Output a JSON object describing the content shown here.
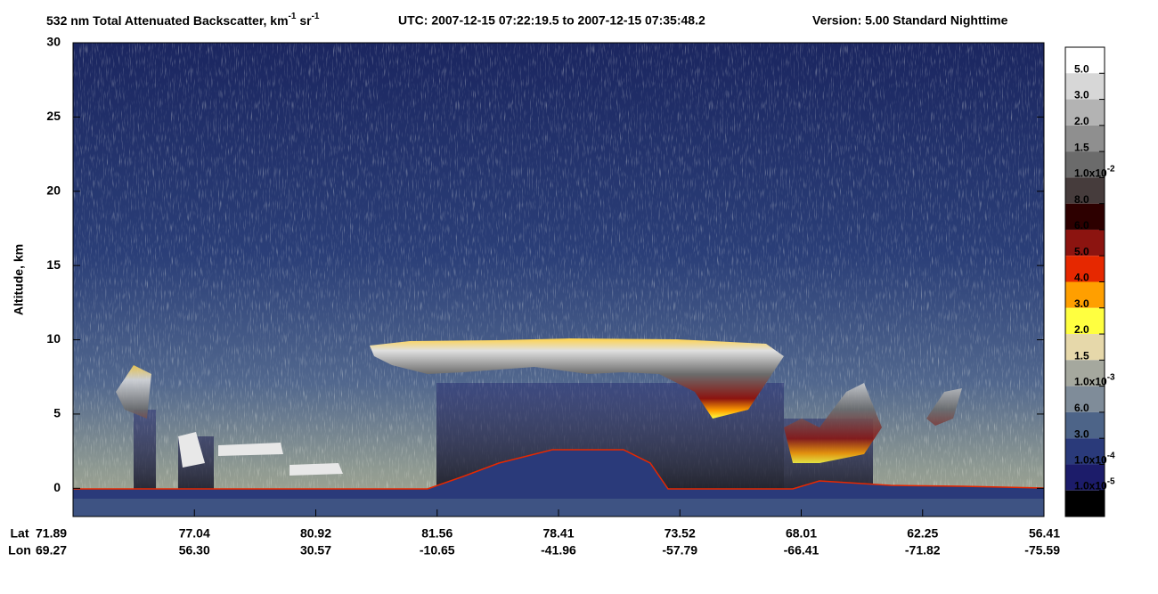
{
  "chart_data": {
    "type": "curtain",
    "title": [
      {
        "text": "532 nm Total Attenuated Backscatter, km"
      },
      {
        "sup": "-1"
      },
      {
        "text": " sr"
      },
      {
        "sup": "-1"
      }
    ],
    "time_range": "UTC:  2007-12-15 07:22:19.5  to  2007-12-15 07:35:48.2",
    "version": "Version: 5.00  Standard  Nighttime",
    "y_label": "Altitude, km",
    "ylim": [
      -1.9,
      30
    ],
    "yticks": [
      0,
      5,
      10,
      15,
      20,
      25,
      30
    ],
    "x_rows": [
      "Lat",
      "Lon"
    ],
    "lat": [
      "71.89",
      "77.04",
      "80.92",
      "81.56",
      "78.41",
      "73.52",
      "68.01",
      "62.25",
      "56.41"
    ],
    "lon": [
      "69.27",
      "56.30",
      "30.57",
      "-10.65",
      "-41.96",
      "-57.79",
      "-66.41",
      "-71.82",
      "-75.59"
    ],
    "colorbar": {
      "colors": [
        "#ffffff",
        "#d7d7d7",
        "#b3b3b3",
        "#8f8f8f",
        "#6b6b6b",
        "#463c3c",
        "#2d0000",
        "#8c1410",
        "#e62800",
        "#ff9f00",
        "#ffff40",
        "#e6d8aa",
        "#a5a89e",
        "#7f8c99",
        "#4d6488",
        "#2a3a7a",
        "#1c1c6a",
        "#000000"
      ],
      "labels": [
        "5.0",
        "3.0",
        "2.0",
        "1.5",
        {
          "text": "1.0x10",
          "sup": "-2"
        },
        "8.0",
        "6.0",
        "5.0",
        "4.0",
        "3.0",
        "2.0",
        "1.5",
        {
          "text": "1.0x10",
          "sup": "-3"
        },
        "6.0",
        "3.0",
        {
          "text": "1.0x10",
          "sup": "-4"
        },
        {
          "text": "1.0x10",
          "sup": "-5"
        }
      ]
    }
  }
}
